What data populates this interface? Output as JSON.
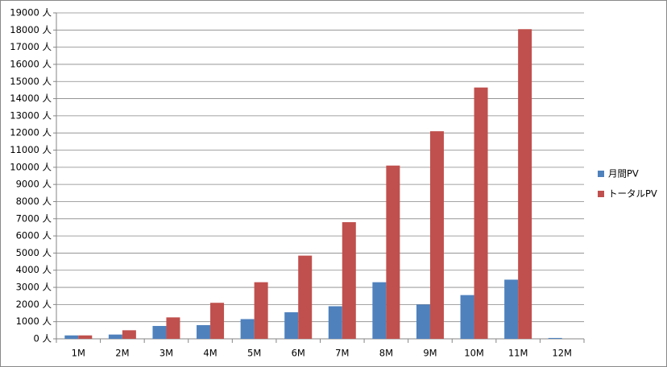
{
  "chart_data": {
    "type": "bar",
    "categories": [
      "1M",
      "2M",
      "3M",
      "4M",
      "5M",
      "6M",
      "7M",
      "8M",
      "9M",
      "10M",
      "11M",
      "12M"
    ],
    "series": [
      {
        "name": "月間PV",
        "color": "#4f81bd",
        "values": [
          200,
          250,
          750,
          800,
          1150,
          1550,
          1900,
          3300,
          2000,
          2550,
          3450,
          50
        ]
      },
      {
        "name": "トータルPV",
        "color": "#c0504d",
        "values": [
          200,
          500,
          1250,
          2100,
          3300,
          4850,
          6800,
          10100,
          12100,
          14650,
          18050,
          null
        ]
      }
    ],
    "ylim": [
      0,
      19000
    ],
    "yticks": [
      {
        "value": 0,
        "label": "0 人"
      },
      {
        "value": 1000,
        "label": "1000 人"
      },
      {
        "value": 2000,
        "label": "2000 人"
      },
      {
        "value": 3000,
        "label": "3000 人"
      },
      {
        "value": 4000,
        "label": "4000 人"
      },
      {
        "value": 5000,
        "label": "5000 人"
      },
      {
        "value": 6000,
        "label": "6000 人"
      },
      {
        "value": 7000,
        "label": "7000 人"
      },
      {
        "value": 8000,
        "label": "8000 人"
      },
      {
        "value": 9000,
        "label": "9000 人"
      },
      {
        "value": 10000,
        "label": "10000 人"
      },
      {
        "value": 11000,
        "label": "11000 人"
      },
      {
        "value": 12000,
        "label": "12000 人"
      },
      {
        "value": 13000,
        "label": "13000 人"
      },
      {
        "value": 14000,
        "label": "14000 人"
      },
      {
        "value": 15000,
        "label": "15000 人"
      },
      {
        "value": 16000,
        "label": "16000 人"
      },
      {
        "value": 17000,
        "label": "17000 人"
      },
      {
        "value": 18000,
        "label": "18000 人"
      },
      {
        "value": 19000,
        "label": "19000 人"
      }
    ],
    "grid": true,
    "legend": "right"
  }
}
